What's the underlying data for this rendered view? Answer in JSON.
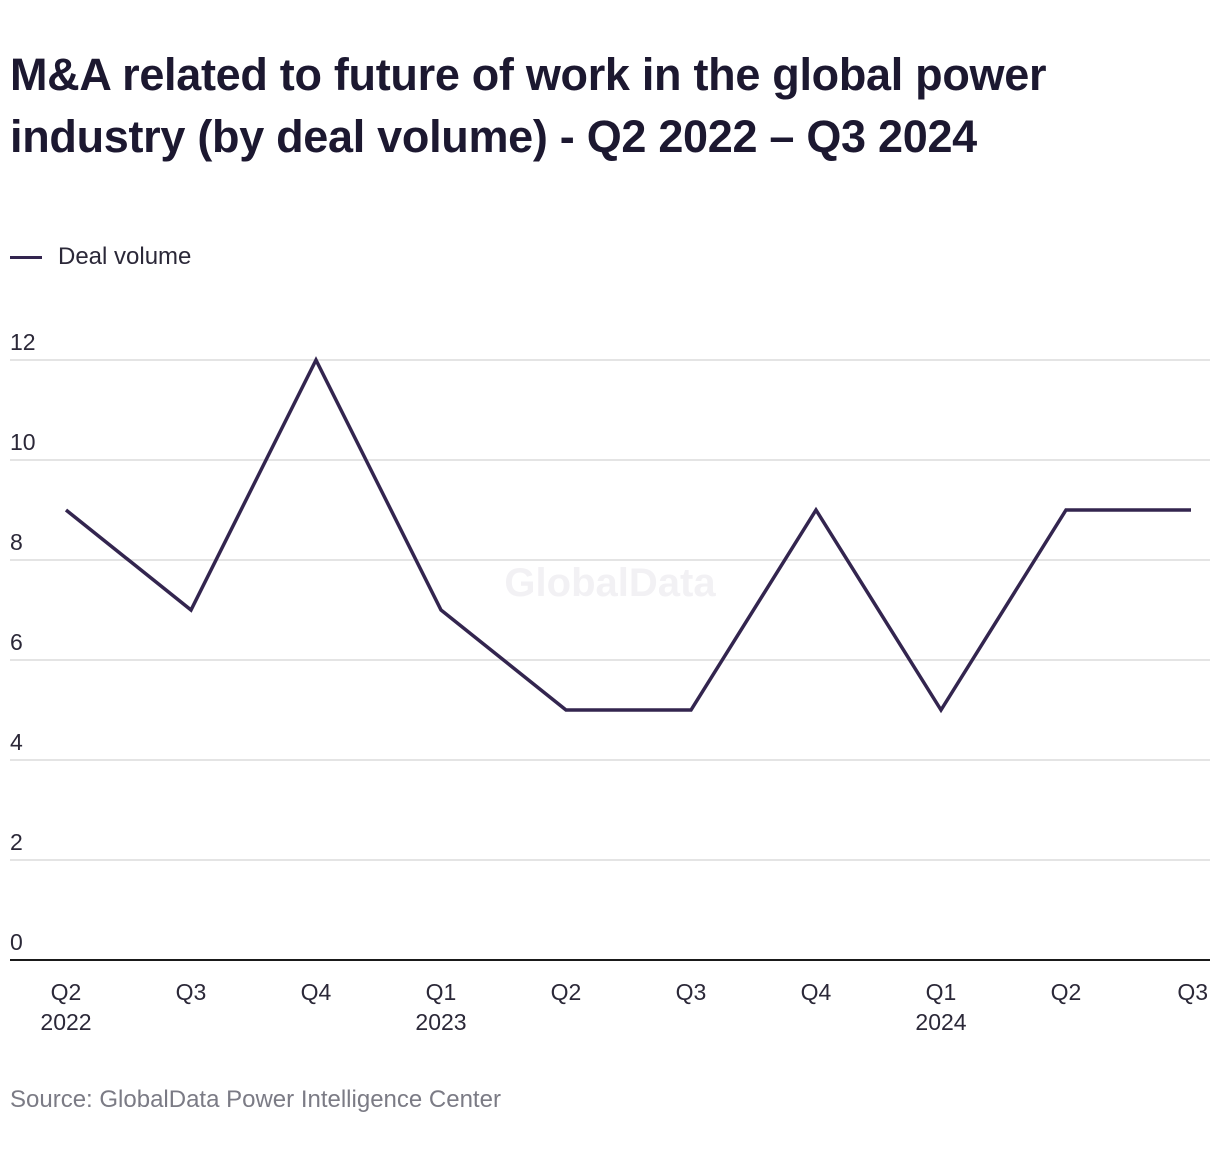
{
  "title": "M&A related to future of work in the global power industry (by deal volume) - Q2 2022 – Q3 2024",
  "legend": {
    "label": "Deal volume"
  },
  "watermark": "GlobalData",
  "source": "Source: GlobalData Power Intelligence Center",
  "colors": {
    "line": "#33254f",
    "grid": "#dcdcdc",
    "axis": "#1a1a1a",
    "text": "#2b2838"
  },
  "chart_data": {
    "type": "line",
    "categories": [
      [
        "Q2",
        "2022"
      ],
      [
        "Q3"
      ],
      [
        "Q4"
      ],
      [
        "Q1",
        "2023"
      ],
      [
        "Q2"
      ],
      [
        "Q3"
      ],
      [
        "Q4"
      ],
      [
        "Q1",
        "2024"
      ],
      [
        "Q2"
      ],
      [
        "Q3"
      ]
    ],
    "series": [
      {
        "name": "Deal volume",
        "values": [
          9,
          7,
          12,
          7,
          5,
          5,
          9,
          5,
          9,
          9
        ]
      }
    ],
    "ylim": [
      0,
      12
    ],
    "yticks": [
      0,
      2,
      4,
      6,
      8,
      10,
      12
    ],
    "grid": true,
    "legend_position": "top-left"
  }
}
